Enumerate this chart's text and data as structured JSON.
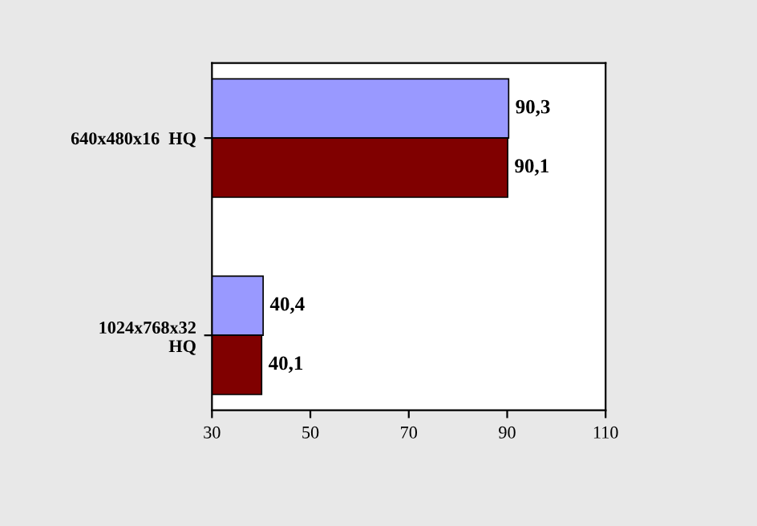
{
  "chart_data": {
    "type": "bar",
    "orientation": "horizontal",
    "categories": [
      "640x480x16  HQ",
      "1024x768x32\nHQ"
    ],
    "series": [
      {
        "color": "#9999ff",
        "values": [
          90.3,
          40.4
        ],
        "value_labels": [
          "90,3",
          "40,4"
        ]
      },
      {
        "color": "#800000",
        "values": [
          90.1,
          40.1
        ],
        "value_labels": [
          "90,1",
          "40,1"
        ]
      }
    ],
    "xlim": [
      30,
      110
    ],
    "xticks": [
      30,
      50,
      70,
      90,
      110
    ],
    "grid": false,
    "legend": false
  }
}
